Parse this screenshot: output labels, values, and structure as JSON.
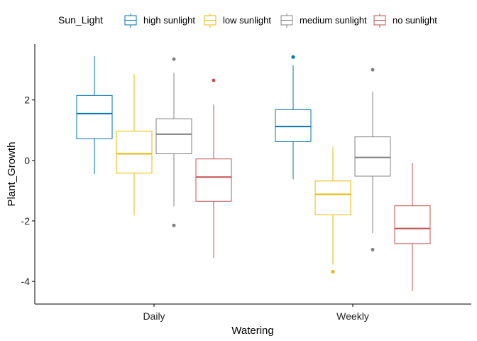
{
  "chart_data": {
    "type": "boxplot",
    "xlabel": "Watering",
    "ylabel": "Plant_Growth",
    "ylim": [
      -4.75,
      3.85
    ],
    "yticks": [
      2,
      0,
      -2,
      -4
    ],
    "ytick_labels": [
      "2",
      "0",
      "-2",
      "-4"
    ],
    "categories": [
      "Daily",
      "Weekly"
    ],
    "legend": {
      "title": "Sun_Light",
      "position": "top",
      "entries": [
        "high sunlight",
        "low sunlight",
        "medium sunlight",
        "no sunlight"
      ]
    },
    "series": [
      {
        "name": "high sunlight",
        "color": "#0072B2",
        "boxes": [
          {
            "category": "Daily",
            "whisker_low": -0.45,
            "q1": 0.72,
            "median": 1.55,
            "q3": 2.15,
            "whisker_high": 3.45,
            "outliers": []
          },
          {
            "category": "Weekly",
            "whisker_low": -0.62,
            "q1": 0.62,
            "median": 1.12,
            "q3": 1.68,
            "whisker_high": 3.15,
            "outliers": [
              3.42
            ]
          }
        ]
      },
      {
        "name": "low sunlight",
        "color": "#E7B800",
        "boxes": [
          {
            "category": "Daily",
            "whisker_low": -1.82,
            "q1": -0.42,
            "median": 0.22,
            "q3": 0.97,
            "whisker_high": 2.85,
            "outliers": []
          },
          {
            "category": "Weekly",
            "whisker_low": -3.45,
            "q1": -1.8,
            "median": -1.12,
            "q3": -0.68,
            "whisker_high": 0.45,
            "outliers": [
              -3.68
            ]
          }
        ]
      },
      {
        "name": "medium sunlight",
        "color": "#808080",
        "boxes": [
          {
            "category": "Daily",
            "whisker_low": -1.52,
            "q1": 0.22,
            "median": 0.87,
            "q3": 1.38,
            "whisker_high": 2.9,
            "outliers": [
              3.35,
              -2.15
            ]
          },
          {
            "category": "Weekly",
            "whisker_low": -2.4,
            "q1": -0.52,
            "median": 0.1,
            "q3": 0.78,
            "whisker_high": 2.28,
            "outliers": [
              3.0,
              -2.95
            ]
          }
        ]
      },
      {
        "name": "no sunlight",
        "color": "#C0504D",
        "boxes": [
          {
            "category": "Daily",
            "whisker_low": -3.22,
            "q1": -1.35,
            "median": -0.55,
            "q3": 0.05,
            "whisker_high": 1.85,
            "outliers": [
              2.65
            ]
          },
          {
            "category": "Weekly",
            "whisker_low": -4.32,
            "q1": -2.75,
            "median": -2.25,
            "q3": -1.5,
            "whisker_high": -0.08,
            "outliers": []
          }
        ]
      }
    ]
  }
}
